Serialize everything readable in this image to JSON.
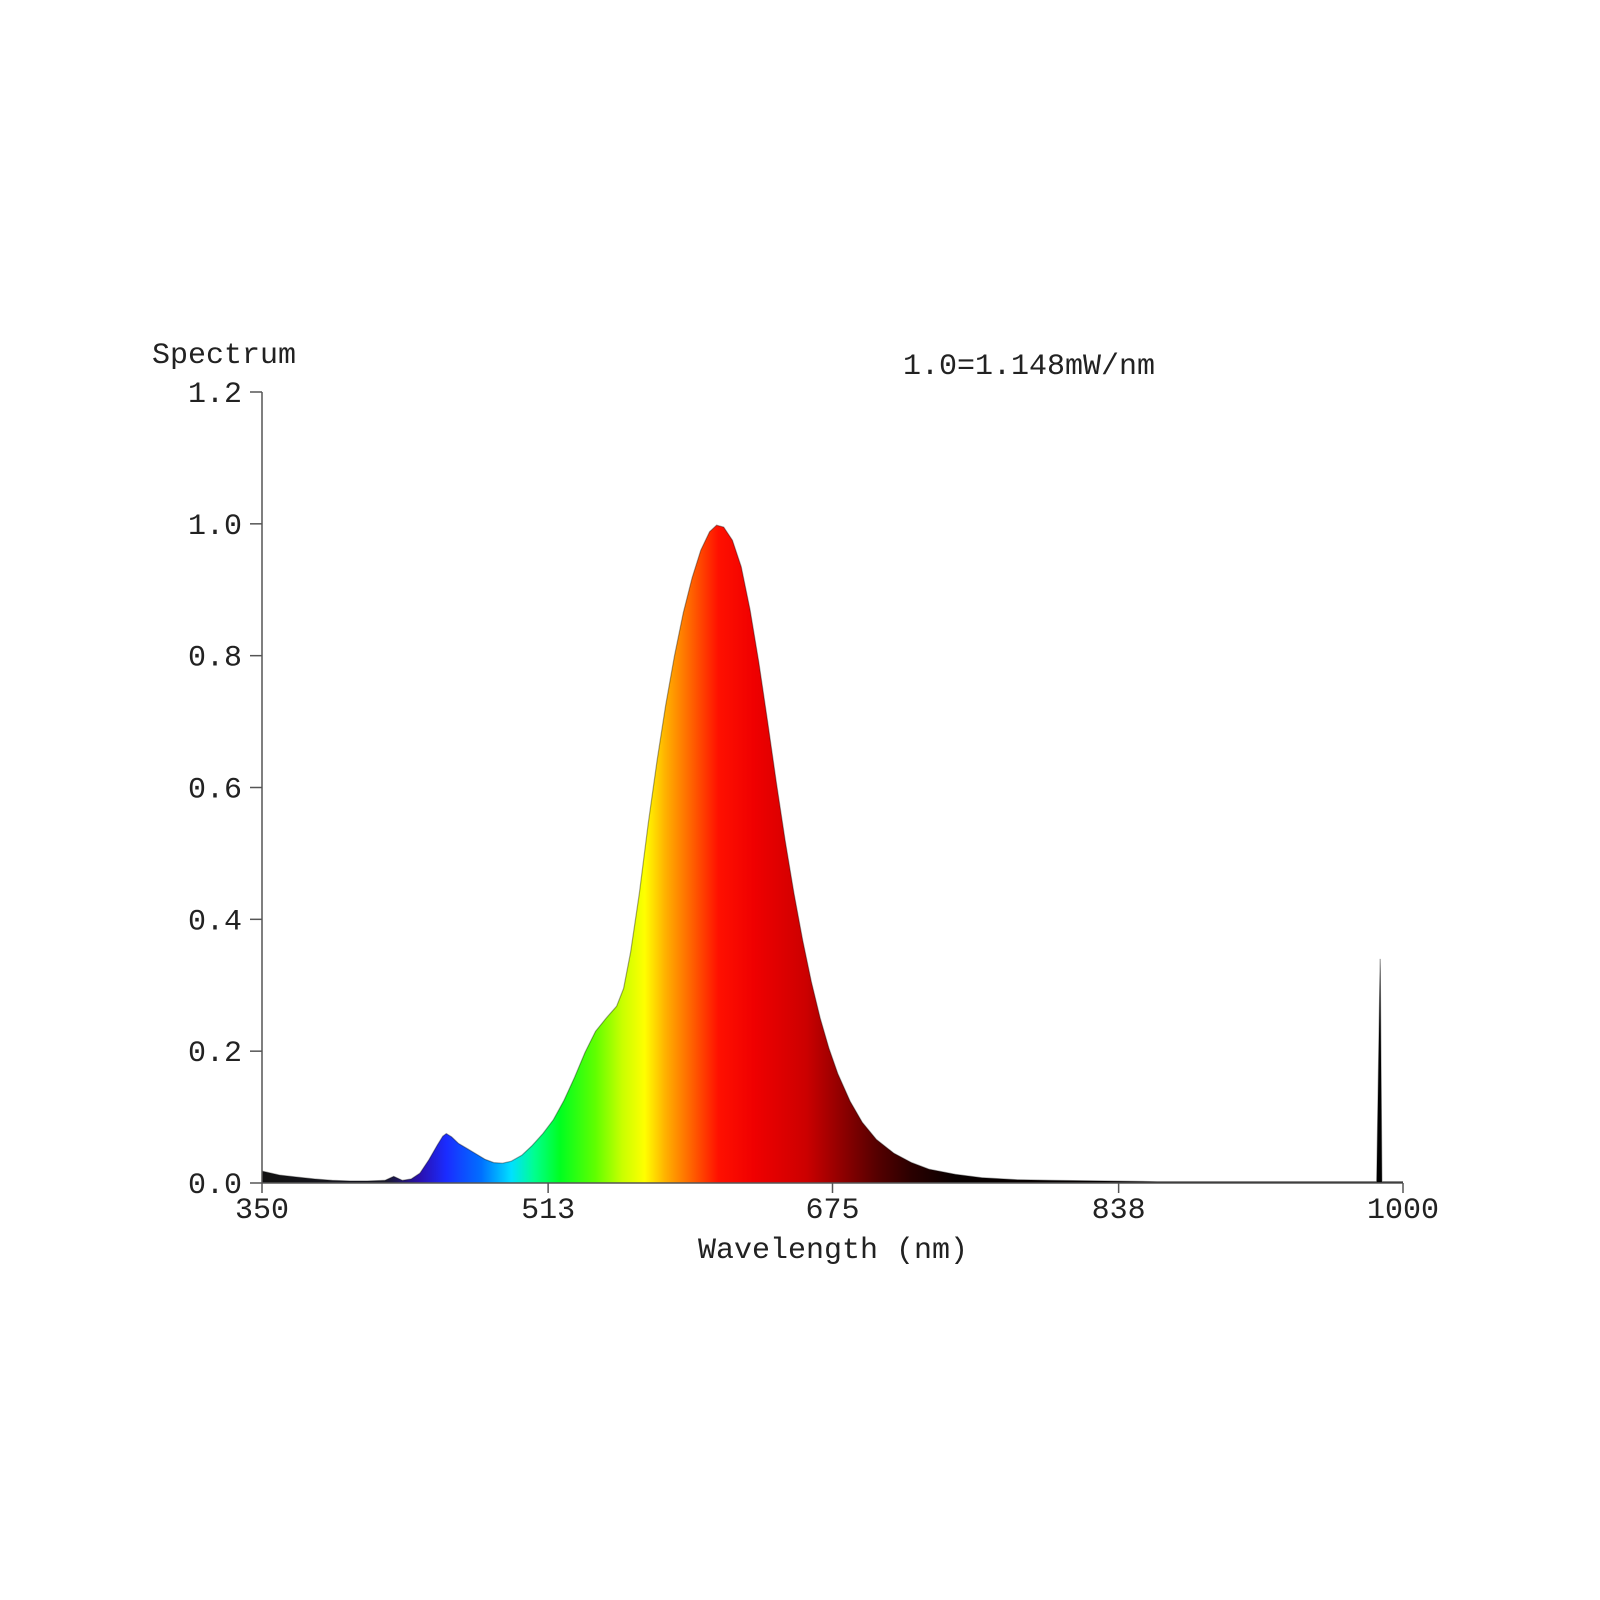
{
  "chart_data": {
    "type": "area",
    "title": "",
    "ylabel": "Spectrum",
    "xlabel": "Wavelength (nm)",
    "annotation": "1.0=1.148mW/nm",
    "xlim": [
      350,
      1000
    ],
    "ylim": [
      0,
      1.2
    ],
    "x_ticks": [
      350,
      513,
      675,
      838,
      1000
    ],
    "x_tick_labels": [
      "350",
      "513",
      "675",
      "838",
      "1000"
    ],
    "y_ticks": [
      0.0,
      0.2,
      0.4,
      0.6,
      0.8,
      1.0,
      1.2
    ],
    "y_tick_labels": [
      "0.0",
      "0.2",
      "0.4",
      "0.6",
      "0.8",
      "1.0",
      "1.2"
    ],
    "grid": false,
    "legend": "none",
    "fill": "visible-spectrum gradient by wavelength",
    "series": [
      {
        "points": [
          [
            350,
            0.018
          ],
          [
            360,
            0.012
          ],
          [
            370,
            0.009
          ],
          [
            380,
            0.006
          ],
          [
            390,
            0.004
          ],
          [
            400,
            0.003
          ],
          [
            410,
            0.003
          ],
          [
            420,
            0.004
          ],
          [
            425,
            0.01
          ],
          [
            430,
            0.004
          ],
          [
            435,
            0.006
          ],
          [
            440,
            0.015
          ],
          [
            445,
            0.035
          ],
          [
            450,
            0.058
          ],
          [
            453,
            0.071
          ],
          [
            455,
            0.075
          ],
          [
            458,
            0.07
          ],
          [
            462,
            0.06
          ],
          [
            467,
            0.052
          ],
          [
            472,
            0.044
          ],
          [
            477,
            0.036
          ],
          [
            482,
            0.031
          ],
          [
            487,
            0.03
          ],
          [
            492,
            0.033
          ],
          [
            498,
            0.042
          ],
          [
            504,
            0.057
          ],
          [
            510,
            0.075
          ],
          [
            516,
            0.096
          ],
          [
            522,
            0.125
          ],
          [
            528,
            0.16
          ],
          [
            534,
            0.198
          ],
          [
            540,
            0.23
          ],
          [
            546,
            0.25
          ],
          [
            552,
            0.268
          ],
          [
            556,
            0.295
          ],
          [
            560,
            0.35
          ],
          [
            565,
            0.44
          ],
          [
            570,
            0.545
          ],
          [
            575,
            0.64
          ],
          [
            580,
            0.725
          ],
          [
            585,
            0.8
          ],
          [
            590,
            0.865
          ],
          [
            595,
            0.918
          ],
          [
            600,
            0.96
          ],
          [
            605,
            0.988
          ],
          [
            609,
            0.998
          ],
          [
            613,
            0.995
          ],
          [
            618,
            0.975
          ],
          [
            623,
            0.935
          ],
          [
            628,
            0.87
          ],
          [
            633,
            0.79
          ],
          [
            638,
            0.7
          ],
          [
            643,
            0.608
          ],
          [
            648,
            0.52
          ],
          [
            653,
            0.44
          ],
          [
            658,
            0.368
          ],
          [
            663,
            0.305
          ],
          [
            668,
            0.25
          ],
          [
            673,
            0.204
          ],
          [
            678,
            0.166
          ],
          [
            685,
            0.124
          ],
          [
            692,
            0.092
          ],
          [
            700,
            0.066
          ],
          [
            710,
            0.045
          ],
          [
            720,
            0.031
          ],
          [
            730,
            0.021
          ],
          [
            745,
            0.013
          ],
          [
            760,
            0.008
          ],
          [
            780,
            0.005
          ],
          [
            800,
            0.004
          ],
          [
            830,
            0.003
          ],
          [
            860,
            0.002
          ],
          [
            900,
            0.002
          ],
          [
            950,
            0.002
          ],
          [
            985,
            0.002
          ],
          [
            987,
            0.34
          ],
          [
            988,
            0.002
          ],
          [
            1000,
            0.002
          ]
        ]
      }
    ]
  }
}
